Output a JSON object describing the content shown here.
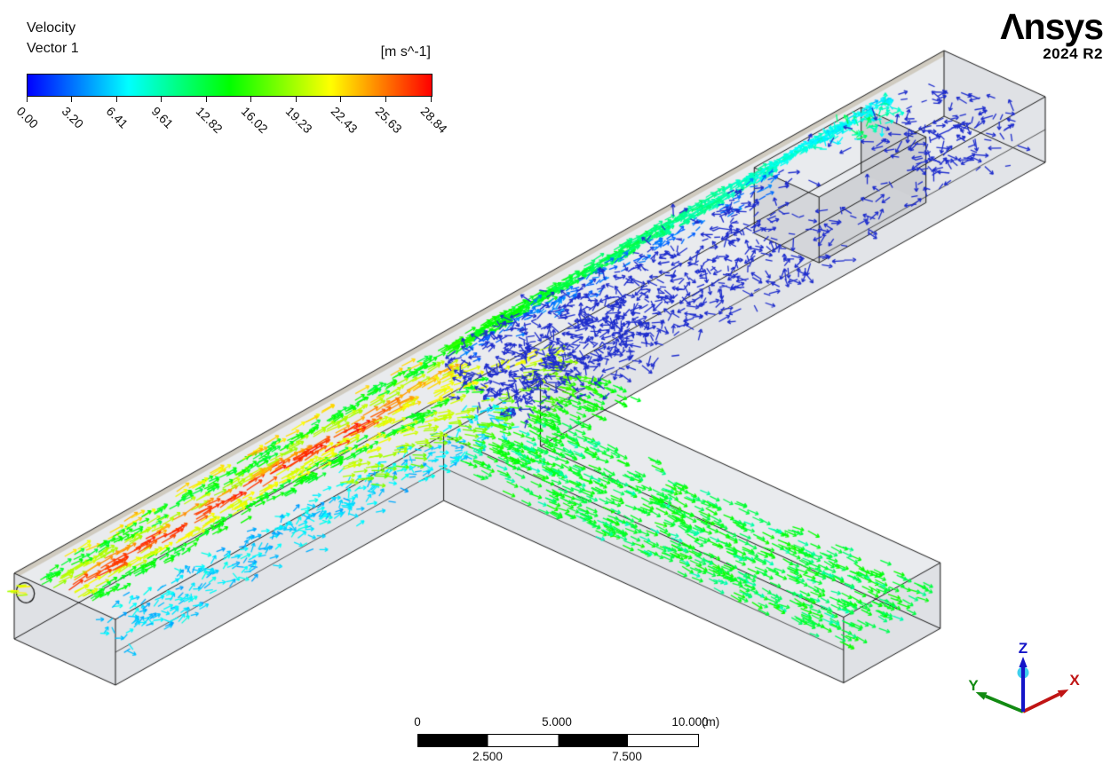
{
  "legend": {
    "title": "Velocity",
    "subtitle": "Vector 1",
    "units": "[m s^-1]",
    "tick_labels": [
      "0.00",
      "3.20",
      "6.41",
      "9.61",
      "12.82",
      "16.02",
      "19.23",
      "22.43",
      "25.63",
      "28.84"
    ],
    "min": 0,
    "max": 28.84,
    "colormap": [
      "#0000ff",
      "#00ffff",
      "#00ff00",
      "#ffff00",
      "#ff0000"
    ]
  },
  "branding": {
    "logo_first": "Λ",
    "logo_rest": "nsys",
    "version": "2024 R2"
  },
  "triad": {
    "sphere_color": "#3fd0ee",
    "axes": [
      {
        "label": "X",
        "color": "#c01414"
      },
      {
        "label": "Y",
        "color": "#128a12"
      },
      {
        "label": "Z",
        "color": "#1414c8"
      }
    ]
  },
  "ruler": {
    "top_labels": [
      "0",
      "5.000",
      "10.000"
    ],
    "unit": "(m)",
    "bottom_labels": [
      "2.500",
      "7.500"
    ]
  },
  "scene": {
    "background": "#ffffff",
    "edge_color": "#151515",
    "top_face_color": "#e9ebee",
    "side_face_color": "#e2e4e8",
    "end_face_color": "#dfe1e5",
    "inner_face_color": "#c7cad0",
    "baffle_face_color": "#d4d6da",
    "wall_band_color": "#c9c3b4"
  }
}
